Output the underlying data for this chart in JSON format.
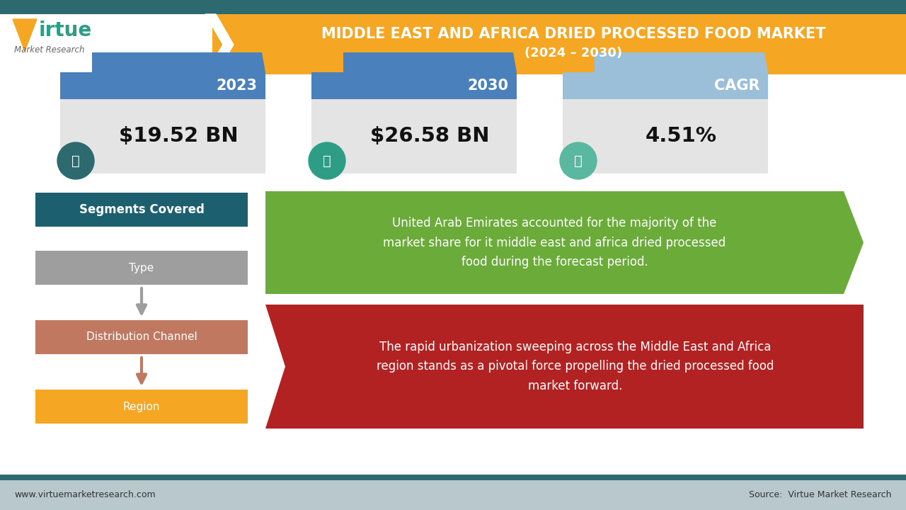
{
  "title_line1": "MIDDLE EAST AND AFRICA DRIED PROCESSED FOOD MARKET",
  "title_line2": "(2024 – 2030)",
  "header_bg": "#F5A623",
  "header_dark": "#2D6A70",
  "card1_year": "2023",
  "card1_value": "$19.52 BN",
  "card2_year": "2030",
  "card2_value": "$26.58 BN",
  "card3_year": "CAGR",
  "card3_value": "4.51%",
  "card_header_color1": "#4A80BB",
  "card_header_color2": "#4A80BB",
  "card_header_color3": "#9BBFD8",
  "card_body_color": "#E4E4E4",
  "icon1_color": "#2D6A70",
  "icon2_color": "#2D9E85",
  "icon3_color": "#5BB8A0",
  "seg_box_color": "#1C5F6E",
  "seg_label": "Segments Covered",
  "type_color": "#9E9E9E",
  "dist_color": "#C07860",
  "region_color": "#F5A623",
  "segments": [
    "Type",
    "Distribution Channel",
    "Region"
  ],
  "green_box_text": "United Arab Emirates accounted for the majority of the\nmarket share for it middle east and africa dried processed\nfood during the forecast period.",
  "green_box_color": "#6AAB3A",
  "red_box_text": "The rapid urbanization sweeping across the Middle East and Africa\nregion stands as a pivotal force propelling the dried processed food\nmarket forward.",
  "red_box_color": "#B22222",
  "footer_bg": "#B8C8CC",
  "footer_left": "www.virtuemarketresearch.com",
  "footer_right": "Source:  Virtue Market Research",
  "bg_color": "#FFFFFF",
  "arrow_gray": "#9E9E9E",
  "arrow_rust": "#C07860",
  "logo_v_color": "#F5A623",
  "logo_text_color": "#2D9E85"
}
